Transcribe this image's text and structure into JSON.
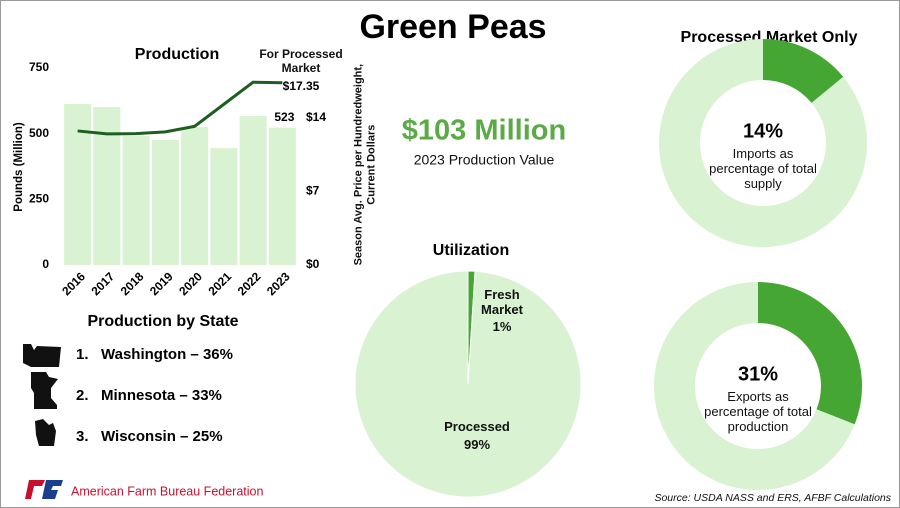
{
  "title": "Green Peas",
  "headline": {
    "value": "$103 Million",
    "label": "2023 Production Value"
  },
  "states": {
    "title": "Production by State",
    "items": [
      {
        "rank": "1.",
        "name": "Washington – 36%"
      },
      {
        "rank": "2.",
        "name": "Minnesota – 33%"
      },
      {
        "rank": "3.",
        "name": "Wisconsin – 25%"
      }
    ]
  },
  "logo": "American Farm Bureau Federation",
  "source": "Source: USDA NASS and ERS, AFBF Calculations",
  "chart_data": [
    {
      "type": "bar",
      "title": "Production",
      "categories": [
        "2016",
        "2017",
        "2018",
        "2019",
        "2020",
        "2021",
        "2022",
        "2023"
      ],
      "series": [
        {
          "name": "Production",
          "color": "#d9f2d2",
          "values": [
            613,
            601,
            491,
            476,
            525,
            445,
            567,
            523
          ],
          "value_labels": [
            null,
            null,
            null,
            null,
            null,
            null,
            null,
            "523"
          ]
        },
        {
          "name": "For Processed Market",
          "type": "line",
          "axis": "y2",
          "color": "#1e5e1e",
          "values": [
            12.76,
            12.48,
            12.5,
            12.67,
            13.2,
            15.3,
            17.4,
            17.35
          ],
          "value_labels": [
            null,
            null,
            null,
            null,
            null,
            null,
            null,
            "$17.35"
          ]
        }
      ],
      "ylabel": "Pounds (Million)",
      "y2label": "Season Avg. Price per Hundredweight, Current Dollars",
      "ylim": [
        0,
        750
      ],
      "yticks": [
        0,
        250,
        500,
        750
      ],
      "y2lim": [
        0,
        18.75
      ],
      "y2ticks": [
        {
          "value": 0,
          "label": "$0"
        },
        {
          "value": 7,
          "label": "$7"
        },
        {
          "value": 14,
          "label": "$14"
        }
      ],
      "grid": false
    },
    {
      "type": "pie",
      "title": "Utilization",
      "categories": [
        "Fresh Market",
        "Processed"
      ],
      "values": [
        1,
        99
      ],
      "value_labels": [
        "1%",
        "99%"
      ],
      "colors": [
        "#45a634",
        "#d9f2d2"
      ]
    },
    {
      "type": "donut",
      "title": "Processed Market Only",
      "value": 14,
      "value_label": "14%",
      "label": "Imports as percentage of total supply",
      "color": "#45a634",
      "track_color": "#d9f2d2"
    },
    {
      "type": "donut",
      "value": 31,
      "value_label": "31%",
      "label": "Exports as percentage of total production",
      "color": "#45a634",
      "track_color": "#d9f2d2"
    }
  ]
}
